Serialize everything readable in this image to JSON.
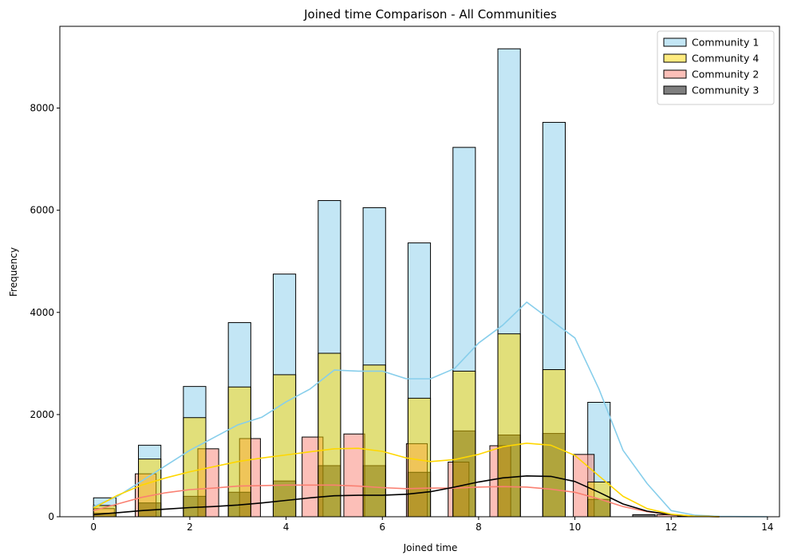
{
  "chart_data": {
    "type": "bar",
    "title": "Joined time Comparison - All Communities",
    "xlabel": "Joined time",
    "ylabel": "Frequency",
    "xlim": [
      -0.7,
      14.25
    ],
    "ylim": [
      0,
      9600
    ],
    "xticks": [
      0,
      2,
      4,
      6,
      8,
      10,
      12,
      14
    ],
    "yticks": [
      0,
      2000,
      4000,
      6000,
      8000
    ],
    "legend_position": "top-right",
    "legend_order": [
      0,
      3,
      1,
      2
    ],
    "series": [
      {
        "name": "Community 1",
        "color": "#87ceeb",
        "bin_edges": [
          0,
          0.467,
          0.933,
          1.4,
          1.867,
          2.333,
          2.8,
          3.267,
          3.733,
          4.2,
          4.667,
          5.133,
          5.6,
          6.067,
          6.533,
          7.0,
          7.467,
          7.933,
          8.4,
          8.867,
          9.333,
          9.8,
          10.267,
          10.733,
          11.2
        ],
        "values": [
          370,
          0,
          1400,
          0,
          2550,
          0,
          3800,
          0,
          4750,
          0,
          6190,
          0,
          6050,
          0,
          5360,
          0,
          7230,
          0,
          9160,
          0,
          7720,
          0,
          2240,
          0
        ],
        "kde_x": [
          0,
          0.5,
          1,
          1.5,
          2,
          2.5,
          3,
          3.5,
          4,
          4.5,
          5,
          5.5,
          6,
          6.5,
          7,
          7.5,
          8,
          8.5,
          9,
          9.5,
          10,
          10.5,
          11,
          11.5,
          12,
          12.5,
          13,
          13.5,
          14
        ],
        "kde_y": [
          200,
          400,
          700,
          1000,
          1300,
          1550,
          1800,
          1950,
          2250,
          2500,
          2870,
          2850,
          2850,
          2700,
          2700,
          2900,
          3400,
          3750,
          4200,
          3850,
          3500,
          2500,
          1300,
          650,
          120,
          30,
          8,
          3,
          0
        ]
      },
      {
        "name": "Community 2",
        "color": "#fa8072",
        "bin_edges": [
          0,
          0.433,
          0.867,
          1.3,
          1.733,
          2.167,
          2.6,
          3.033,
          3.467,
          3.9,
          4.333,
          4.767,
          5.2,
          5.633,
          6.067,
          6.5,
          6.933,
          7.367,
          7.8,
          8.233,
          8.667,
          9.1,
          9.533,
          9.967,
          10.4,
          10.833,
          11.267,
          11.7,
          12.133
        ],
        "values": [
          160,
          0,
          840,
          0,
          0,
          1330,
          0,
          1530,
          0,
          0,
          1560,
          0,
          1620,
          0,
          0,
          1430,
          0,
          1070,
          0,
          1390,
          0,
          0,
          0,
          1220,
          0,
          0,
          0,
          40
        ],
        "kde_x": [
          0,
          0.5,
          1,
          1.5,
          2,
          2.5,
          3,
          3.5,
          4,
          4.5,
          5,
          5.5,
          6,
          6.5,
          7,
          7.5,
          8,
          8.5,
          9,
          9.5,
          10,
          10.5,
          11,
          11.5,
          12,
          12.5,
          13
        ],
        "kde_y": [
          120,
          250,
          380,
          470,
          530,
          560,
          600,
          610,
          620,
          620,
          620,
          600,
          570,
          550,
          560,
          560,
          580,
          590,
          580,
          540,
          480,
          350,
          200,
          100,
          40,
          10,
          2
        ]
      },
      {
        "name": "Community 3",
        "color": "#000000",
        "bin_edges": [
          0,
          0.467,
          0.933,
          1.4,
          1.867,
          2.333,
          2.8,
          3.267,
          3.733,
          4.2,
          4.667,
          5.133,
          5.6,
          6.067,
          6.533,
          7.0,
          7.467,
          7.933,
          8.4,
          8.867,
          9.333,
          9.8,
          10.267,
          10.733,
          11.2,
          11.667,
          12.133,
          12.6,
          13.067
        ],
        "values": [
          70,
          0,
          270,
          0,
          400,
          0,
          480,
          0,
          700,
          0,
          1000,
          0,
          1000,
          0,
          870,
          0,
          1680,
          0,
          1600,
          0,
          1630,
          0,
          340,
          0,
          40,
          0,
          10,
          0
        ],
        "kde_x": [
          0,
          0.5,
          1,
          1.5,
          2,
          2.5,
          3,
          3.5,
          4,
          4.5,
          5,
          5.5,
          6,
          6.5,
          7,
          7.5,
          8,
          8.5,
          9,
          9.5,
          10,
          10.5,
          11,
          11.5,
          12,
          12.5,
          13
        ],
        "kde_y": [
          40,
          80,
          120,
          150,
          180,
          200,
          230,
          270,
          320,
          370,
          410,
          420,
          420,
          440,
          490,
          580,
          680,
          760,
          800,
          790,
          690,
          480,
          250,
          110,
          40,
          10,
          2
        ]
      },
      {
        "name": "Community 4",
        "color": "#ffd700",
        "bin_edges": [
          0,
          0.467,
          0.933,
          1.4,
          1.867,
          2.333,
          2.8,
          3.267,
          3.733,
          4.2,
          4.667,
          5.133,
          5.6,
          6.067,
          6.533,
          7.0,
          7.467,
          7.933,
          8.4,
          8.867,
          9.333,
          9.8,
          10.267,
          10.733,
          11.2
        ],
        "values": [
          220,
          0,
          1130,
          0,
          1940,
          0,
          2540,
          0,
          2780,
          0,
          3200,
          0,
          2970,
          0,
          2320,
          0,
          2850,
          0,
          3580,
          0,
          2880,
          0,
          680,
          0
        ],
        "kde_x": [
          0,
          0.5,
          1,
          1.5,
          2,
          2.5,
          3,
          3.5,
          4,
          4.5,
          5,
          5.5,
          6,
          6.5,
          7,
          7.5,
          8,
          8.5,
          9,
          9.5,
          10,
          10.5,
          11,
          11.5,
          12,
          12.5,
          13
        ],
        "kde_y": [
          170,
          420,
          620,
          760,
          880,
          980,
          1080,
          1150,
          1210,
          1270,
          1330,
          1340,
          1280,
          1150,
          1080,
          1120,
          1220,
          1370,
          1440,
          1400,
          1200,
          800,
          400,
          160,
          50,
          10,
          2
        ]
      }
    ]
  }
}
